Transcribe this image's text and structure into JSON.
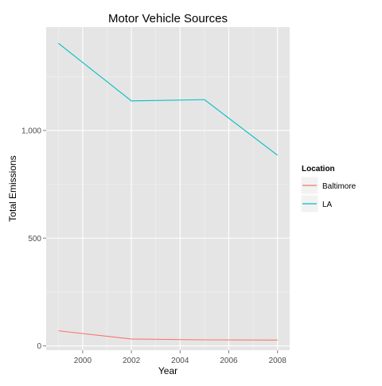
{
  "chart_data": {
    "type": "line",
    "title": "Motor Vehicle Sources",
    "xlabel": "Year",
    "ylabel": "Total Emissions",
    "xlim": [
      1998.5,
      2008.5
    ],
    "ylim": [
      -20,
      1480
    ],
    "x_ticks": [
      2000,
      2002,
      2004,
      2006,
      2008
    ],
    "y_ticks": [
      0,
      500,
      1000
    ],
    "x_tick_labels": [
      "2000",
      "2002",
      "2004",
      "2006",
      "2008"
    ],
    "y_tick_labels": [
      "0",
      "500",
      "1,000"
    ],
    "grid": true,
    "legend": {
      "title": "Location",
      "position": "right"
    },
    "series": [
      {
        "name": "Baltimore",
        "color": "#F8766D",
        "x": [
          1999,
          2002,
          2005,
          2008
        ],
        "values": [
          70,
          32,
          28,
          27
        ]
      },
      {
        "name": "LA",
        "color": "#00BFC4",
        "x": [
          1999,
          2002,
          2005,
          2008
        ],
        "values": [
          1405,
          1137,
          1143,
          885
        ]
      }
    ]
  }
}
